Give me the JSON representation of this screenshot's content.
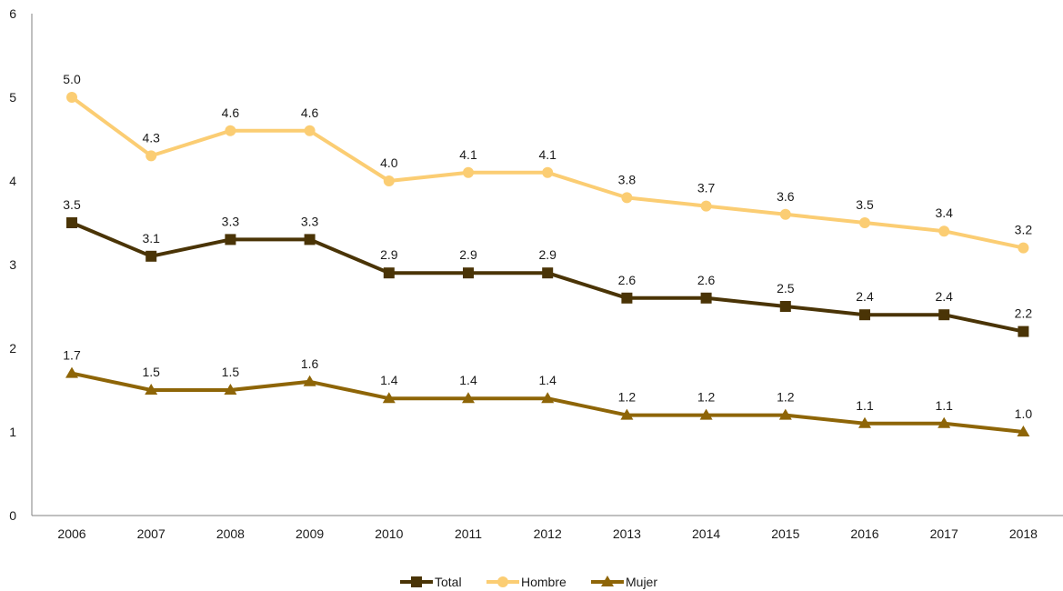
{
  "chart_data": {
    "type": "line",
    "title": "",
    "xlabel": "",
    "ylabel": "",
    "categories": [
      "2006",
      "2007",
      "2008",
      "2009",
      "2010",
      "2011",
      "2012",
      "2013",
      "2014",
      "2015",
      "2016",
      "2017",
      "2018"
    ],
    "ylim": [
      0,
      6
    ],
    "yticks": [
      "0",
      "1",
      "2",
      "3",
      "4",
      "5",
      "6"
    ],
    "grid": false,
    "legend_position": "bottom",
    "series": [
      {
        "name": "Total",
        "color": "#4a3406",
        "marker": "square",
        "values": [
          3.5,
          3.1,
          3.3,
          3.3,
          2.9,
          2.9,
          2.9,
          2.6,
          2.6,
          2.5,
          2.4,
          2.4,
          2.2
        ],
        "labels": [
          "3.5",
          "3.1",
          "3.3",
          "3.3",
          "2.9",
          "2.9",
          "2.9",
          "2.6",
          "2.6",
          "2.5",
          "2.4",
          "2.4",
          "2.2"
        ]
      },
      {
        "name": "Hombre",
        "color": "#fbcd73",
        "marker": "circle",
        "values": [
          5.0,
          4.3,
          4.6,
          4.6,
          4.0,
          4.1,
          4.1,
          3.8,
          3.7,
          3.6,
          3.5,
          3.4,
          3.2
        ],
        "labels": [
          "5.0",
          "4.3",
          "4.6",
          "4.6",
          "4.0",
          "4.1",
          "4.1",
          "3.8",
          "3.7",
          "3.6",
          "3.5",
          "3.4",
          "3.2"
        ]
      },
      {
        "name": "Mujer",
        "color": "#8e6507",
        "marker": "triangle",
        "values": [
          1.7,
          1.5,
          1.5,
          1.6,
          1.4,
          1.4,
          1.4,
          1.2,
          1.2,
          1.2,
          1.1,
          1.1,
          1.0
        ],
        "labels": [
          "1.7",
          "1.5",
          "1.5",
          "1.6",
          "1.4",
          "1.4",
          "1.4",
          "1.2",
          "1.2",
          "1.2",
          "1.1",
          "1.1",
          "1.0"
        ]
      }
    ]
  }
}
